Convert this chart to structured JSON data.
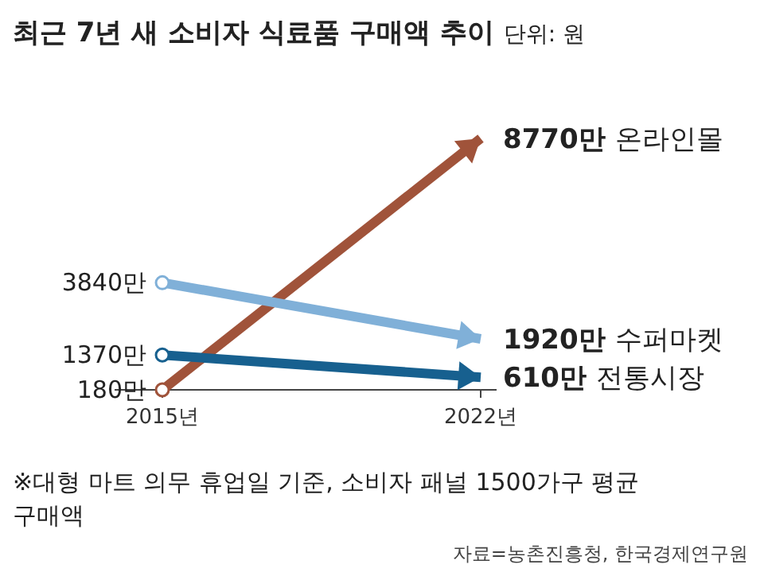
{
  "chart_data": {
    "type": "line",
    "title": "최근 7년 새 소비자 식료품 구매액 추이",
    "subtitle": "단위: 원",
    "categories": [
      "2015년",
      "2022년"
    ],
    "marker": "circle",
    "series": [
      {
        "name": "온라인몰",
        "color": "#a0533a",
        "values": [
          180,
          8770
        ],
        "value_labels": [
          "180만",
          "8770만"
        ]
      },
      {
        "name": "수퍼마켓",
        "color": "#80b0d8",
        "values": [
          3840,
          1920
        ],
        "value_labels": [
          "3840만",
          "1920만"
        ]
      },
      {
        "name": "전통시장",
        "color": "#17608f",
        "values": [
          1370,
          610
        ],
        "value_labels": [
          "1370만",
          "610만"
        ]
      }
    ],
    "annotations": [
      "※대형 마트 의무 휴업일 기준, 소비자 패널 1500가구 평균 구매액",
      "자료=농촌진흥청, 한국경제연구원"
    ]
  }
}
